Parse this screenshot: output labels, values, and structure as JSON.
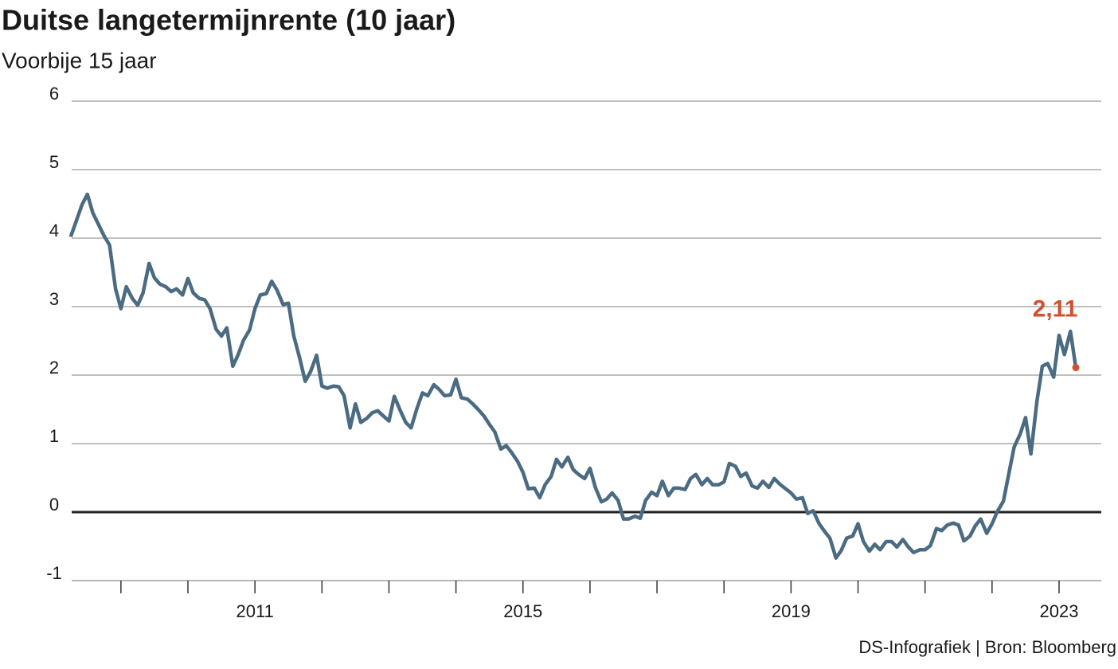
{
  "chart_data": {
    "type": "line",
    "title": "Duitse langetermijnrente (10 jaar)",
    "subtitle": "Voorbije 15 jaar",
    "source": "DS-Infografiek | Bron: Bloomberg",
    "annotation": "2,11",
    "color": "#4a6b82",
    "annotation_color": "#d0502f",
    "grid": true,
    "xlim": [
      2008.265,
      2023.63
    ],
    "ylim": [
      -1,
      6
    ],
    "yticks": [
      -1,
      0,
      1,
      2,
      3,
      4,
      5,
      6
    ],
    "xticks": [
      2011,
      2015,
      2019,
      2023
    ],
    "xminor_ticks": [
      2009,
      2010,
      2011,
      2012,
      2013,
      2014,
      2015,
      2016,
      2017,
      2018,
      2019,
      2020,
      2021,
      2022,
      2023
    ],
    "x": [
      2008.25,
      2008.33,
      2008.42,
      2008.5,
      2008.58,
      2008.67,
      2008.75,
      2008.83,
      2008.92,
      2009,
      2009.08,
      2009.17,
      2009.25,
      2009.33,
      2009.42,
      2009.5,
      2009.58,
      2009.67,
      2009.75,
      2009.83,
      2009.92,
      2010,
      2010.08,
      2010.17,
      2010.25,
      2010.33,
      2010.42,
      2010.5,
      2010.58,
      2010.67,
      2010.75,
      2010.83,
      2010.92,
      2011,
      2011.08,
      2011.17,
      2011.25,
      2011.33,
      2011.42,
      2011.5,
      2011.58,
      2011.67,
      2011.75,
      2011.83,
      2011.92,
      2012,
      2012.08,
      2012.17,
      2012.25,
      2012.33,
      2012.42,
      2012.5,
      2012.58,
      2012.67,
      2012.75,
      2012.83,
      2012.92,
      2013,
      2013.08,
      2013.17,
      2013.25,
      2013.33,
      2013.42,
      2013.5,
      2013.58,
      2013.67,
      2013.75,
      2013.83,
      2013.92,
      2014,
      2014.08,
      2014.17,
      2014.25,
      2014.33,
      2014.42,
      2014.5,
      2014.58,
      2014.67,
      2014.75,
      2014.83,
      2014.92,
      2015,
      2015.08,
      2015.17,
      2015.25,
      2015.33,
      2015.42,
      2015.5,
      2015.58,
      2015.67,
      2015.75,
      2015.83,
      2015.92,
      2016,
      2016.08,
      2016.17,
      2016.25,
      2016.33,
      2016.42,
      2016.5,
      2016.58,
      2016.67,
      2016.75,
      2016.83,
      2016.92,
      2017,
      2017.08,
      2017.17,
      2017.25,
      2017.33,
      2017.42,
      2017.5,
      2017.58,
      2017.67,
      2017.75,
      2017.83,
      2017.92,
      2018,
      2018.08,
      2018.17,
      2018.25,
      2018.33,
      2018.42,
      2018.5,
      2018.58,
      2018.67,
      2018.75,
      2018.83,
      2018.92,
      2019,
      2019.08,
      2019.17,
      2019.25,
      2019.33,
      2019.42,
      2019.5,
      2019.58,
      2019.67,
      2019.75,
      2019.83,
      2019.92,
      2020,
      2020.08,
      2020.17,
      2020.25,
      2020.33,
      2020.42,
      2020.5,
      2020.58,
      2020.67,
      2020.75,
      2020.83,
      2020.92,
      2021,
      2021.08,
      2021.17,
      2021.25,
      2021.33,
      2021.42,
      2021.5,
      2021.58,
      2021.67,
      2021.75,
      2021.83,
      2021.92,
      2022,
      2022.08,
      2022.17,
      2022.25,
      2022.33,
      2022.42,
      2022.5,
      2022.58,
      2022.67,
      2022.75,
      2022.83,
      2022.92,
      2023,
      2023.08,
      2023.17,
      2023.25
    ],
    "values": [
      4.02,
      4.24,
      4.49,
      4.64,
      4.37,
      4.19,
      4.03,
      3.9,
      3.26,
      2.97,
      3.29,
      3.12,
      3.02,
      3.2,
      3.63,
      3.42,
      3.33,
      3.29,
      3.22,
      3.26,
      3.17,
      3.41,
      3.2,
      3.12,
      3.1,
      2.97,
      2.67,
      2.57,
      2.69,
      2.13,
      2.3,
      2.51,
      2.66,
      2.97,
      3.17,
      3.19,
      3.37,
      3.24,
      3.03,
      3.05,
      2.57,
      2.24,
      1.91,
      2.05,
      2.29,
      1.84,
      1.81,
      1.84,
      1.83,
      1.7,
      1.23,
      1.58,
      1.31,
      1.37,
      1.45,
      1.48,
      1.4,
      1.33,
      1.69,
      1.48,
      1.31,
      1.23,
      1.52,
      1.74,
      1.7,
      1.86,
      1.79,
      1.7,
      1.71,
      1.94,
      1.67,
      1.65,
      1.58,
      1.5,
      1.4,
      1.28,
      1.17,
      0.92,
      0.97,
      0.87,
      0.74,
      0.58,
      0.34,
      0.35,
      0.21,
      0.4,
      0.52,
      0.77,
      0.66,
      0.8,
      0.62,
      0.55,
      0.49,
      0.64,
      0.36,
      0.15,
      0.19,
      0.28,
      0.17,
      -0.1,
      -0.1,
      -0.06,
      -0.09,
      0.17,
      0.29,
      0.24,
      0.45,
      0.24,
      0.35,
      0.35,
      0.33,
      0.49,
      0.55,
      0.4,
      0.49,
      0.4,
      0.4,
      0.44,
      0.71,
      0.67,
      0.52,
      0.57,
      0.38,
      0.35,
      0.45,
      0.36,
      0.49,
      0.41,
      0.34,
      0.28,
      0.19,
      0.21,
      -0.02,
      0.02,
      -0.17,
      -0.28,
      -0.38,
      -0.67,
      -0.56,
      -0.38,
      -0.35,
      -0.17,
      -0.43,
      -0.57,
      -0.47,
      -0.55,
      -0.43,
      -0.43,
      -0.51,
      -0.4,
      -0.51,
      -0.59,
      -0.55,
      -0.55,
      -0.49,
      -0.24,
      -0.27,
      -0.19,
      -0.16,
      -0.19,
      -0.42,
      -0.35,
      -0.2,
      -0.1,
      -0.31,
      -0.17,
      0.01,
      0.16,
      0.56,
      0.95,
      1.14,
      1.38,
      0.85,
      1.62,
      2.13,
      2.17,
      1.97,
      2.58,
      2.3,
      2.64,
      2.11
    ]
  }
}
